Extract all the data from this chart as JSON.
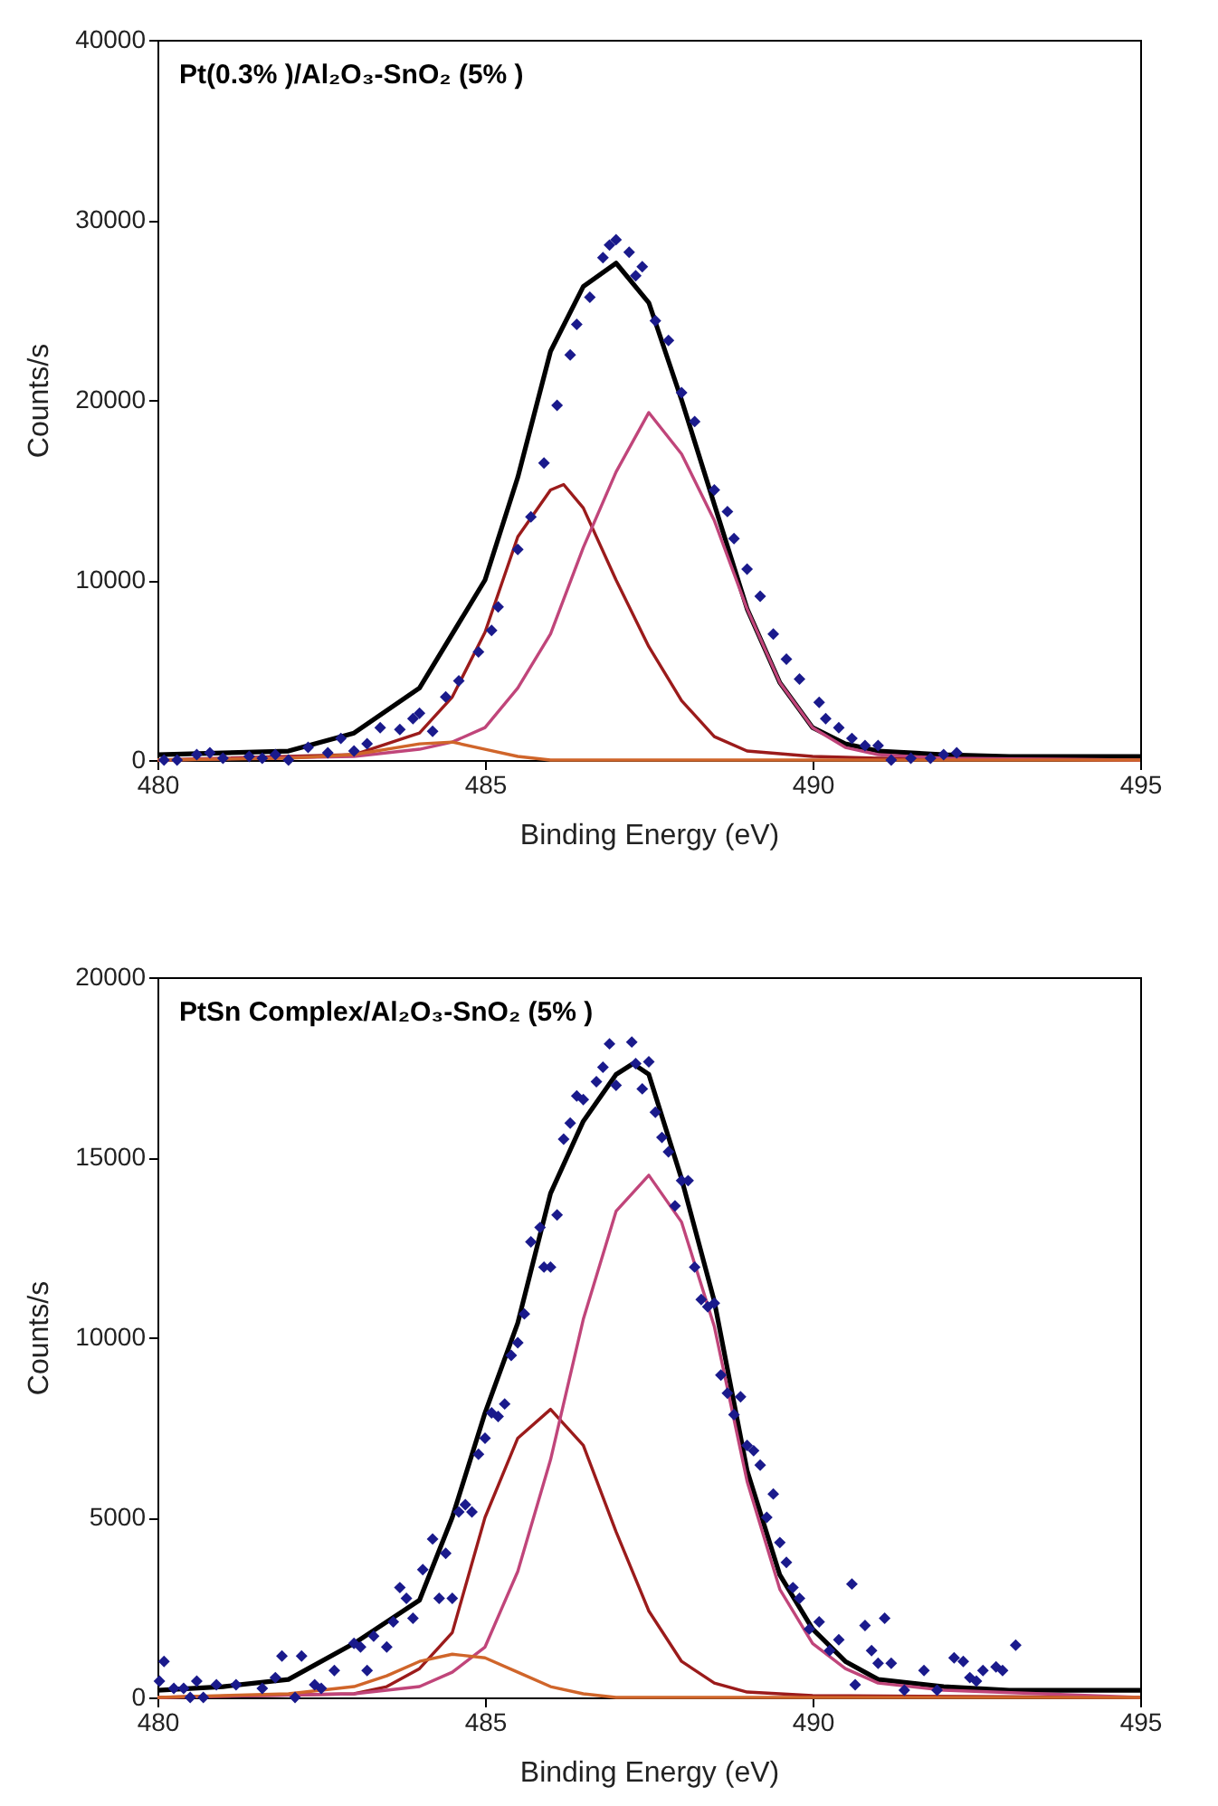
{
  "chart_data": [
    {
      "type": "line",
      "title": "Pt(0.3% )/Al₂O₃-SnO₂ (5% )",
      "xlabel": "Binding Energy (eV)",
      "ylabel": "Counts/s",
      "xlim": [
        480,
        495
      ],
      "xticks": [
        480,
        485,
        490,
        495
      ],
      "ylim": [
        0,
        40000
      ],
      "yticks": [
        0,
        10000,
        20000,
        30000,
        40000
      ],
      "series": [
        {
          "type": "scatter",
          "marker": "diamond",
          "color": "#1a1a8c",
          "x": [
            480.1,
            480.3,
            480.6,
            480.8,
            481.0,
            481.4,
            481.6,
            481.8,
            482.0,
            482.3,
            482.6,
            482.8,
            483.0,
            483.2,
            483.4,
            483.7,
            483.9,
            484.0,
            484.2,
            484.4,
            484.6,
            484.9,
            485.1,
            485.2,
            485.5,
            485.7,
            485.9,
            486.1,
            486.3,
            486.4,
            486.6,
            486.8,
            486.9,
            487.0,
            487.2,
            487.3,
            487.4,
            487.6,
            487.8,
            488.0,
            488.2,
            488.5,
            488.7,
            488.8,
            489.0,
            489.2,
            489.4,
            489.6,
            489.8,
            490.1,
            490.2,
            490.4,
            490.6,
            490.8,
            491.0,
            491.2,
            491.5,
            491.8,
            492.0,
            492.2
          ],
          "values": [
            0,
            0,
            300,
            400,
            100,
            200,
            100,
            300,
            0,
            700,
            400,
            1200,
            500,
            900,
            1800,
            1700,
            2300,
            2600,
            1600,
            3500,
            4400,
            6000,
            7200,
            8500,
            11700,
            13500,
            16500,
            19700,
            22500,
            24200,
            25700,
            27900,
            28600,
            28900,
            28200,
            26900,
            27400,
            24400,
            23300,
            20400,
            18800,
            15000,
            13800,
            12300,
            10600,
            9100,
            7000,
            5600,
            4500,
            3200,
            2300,
            1800,
            1200,
            800,
            800,
            0,
            100,
            100,
            300,
            400
          ]
        },
        {
          "color": "#000000",
          "x": [
            480,
            481,
            482,
            483,
            484,
            485,
            485.5,
            486,
            486.5,
            487,
            487.5,
            488,
            488.5,
            489,
            489.5,
            490,
            490.5,
            491,
            492,
            493,
            495
          ],
          "values": [
            300,
            400,
            500,
            1500,
            4000,
            10000,
            15700,
            22700,
            26300,
            27600,
            25400,
            20000,
            14200,
            8400,
            4300,
            1800,
            900,
            500,
            300,
            200,
            200
          ]
        },
        {
          "color": "#9b1b1b",
          "x": [
            480,
            483,
            484,
            484.5,
            485,
            485.5,
            486,
            486.2,
            486.5,
            487,
            487.5,
            488,
            488.5,
            489,
            490,
            491,
            495
          ],
          "values": [
            0,
            300,
            1500,
            3500,
            7100,
            12400,
            15000,
            15300,
            14000,
            10000,
            6300,
            3300,
            1300,
            500,
            200,
            100,
            0
          ]
        },
        {
          "color": "#c0457a",
          "x": [
            480,
            483,
            484,
            484.5,
            485,
            485.5,
            486,
            486.5,
            487,
            487.5,
            488,
            488.5,
            489,
            489.5,
            490,
            490.5,
            491,
            492,
            495
          ],
          "values": [
            0,
            200,
            600,
            1000,
            1800,
            4000,
            7000,
            11800,
            16000,
            19300,
            17000,
            13300,
            8400,
            4300,
            1800,
            700,
            300,
            100,
            0
          ]
        },
        {
          "color": "#d0652a",
          "x": [
            480,
            482,
            483,
            484,
            484.5,
            485,
            485.5,
            486,
            487,
            495
          ],
          "values": [
            0,
            100,
            300,
            900,
            1000,
            600,
            200,
            0,
            0,
            0
          ]
        }
      ]
    },
    {
      "type": "line",
      "title": "PtSn Complex/Al₂O₃-SnO₂ (5% )",
      "xlabel": "Binding Energy (eV)",
      "ylabel": "Counts/s",
      "xlim": [
        480,
        495
      ],
      "xticks": [
        480,
        485,
        490,
        495
      ],
      "ylim": [
        0,
        20000
      ],
      "yticks": [
        0,
        5000,
        10000,
        15000,
        20000
      ],
      "series": [
        {
          "type": "scatter",
          "marker": "diamond",
          "color": "#1a1a8c",
          "x": [
            480.03,
            480.1,
            480.25,
            480.4,
            480.5,
            480.6,
            480.7,
            480.9,
            481.2,
            481.6,
            481.8,
            481.9,
            482.1,
            482.2,
            482.4,
            482.5,
            482.7,
            483.0,
            483.1,
            483.2,
            483.3,
            483.5,
            483.6,
            483.7,
            483.8,
            483.9,
            484.05,
            484.2,
            484.3,
            484.4,
            484.5,
            484.6,
            484.7,
            484.8,
            484.9,
            485.0,
            485.1,
            485.2,
            485.3,
            485.4,
            485.5,
            485.6,
            485.7,
            485.84,
            485.9,
            486.0,
            486.1,
            486.2,
            486.3,
            486.4,
            486.5,
            486.7,
            486.8,
            486.9,
            487.0,
            487.24,
            487.3,
            487.4,
            487.5,
            487.6,
            487.7,
            487.8,
            487.9,
            488.0,
            488.1,
            488.2,
            488.3,
            488.4,
            488.5,
            488.6,
            488.7,
            488.8,
            488.9,
            489.0,
            489.1,
            489.2,
            489.3,
            489.4,
            489.5,
            489.6,
            489.7,
            489.8,
            489.95,
            490.1,
            490.26,
            490.4,
            490.6,
            490.65,
            490.8,
            490.9,
            491.0,
            491.1,
            491.2,
            491.4,
            491.7,
            491.9,
            492.16,
            492.3,
            492.4,
            492.5,
            492.6,
            492.8,
            492.9,
            493.1
          ],
          "values": [
            450,
            1000,
            250,
            250,
            0,
            450,
            0,
            350,
            350,
            250,
            550,
            1150,
            0,
            1150,
            350,
            250,
            750,
            1500,
            1400,
            750,
            1700,
            1400,
            2100,
            3050,
            2750,
            2200,
            3550,
            4400,
            2750,
            4000,
            2750,
            5150,
            5350,
            5150,
            6750,
            7200,
            7900,
            7800,
            8150,
            9500,
            9850,
            10650,
            12650,
            13050,
            11950,
            11950,
            13400,
            15500,
            15950,
            16700,
            16600,
            17100,
            17500,
            18150,
            17000,
            18200,
            17600,
            16900,
            17650,
            16250,
            15550,
            15150,
            13650,
            14350,
            14350,
            11950,
            11050,
            10850,
            10950,
            8950,
            8450,
            7850,
            8350,
            7000,
            6850,
            6450,
            5000,
            5650,
            4300,
            3750,
            3050,
            2750,
            1900,
            2100,
            1300,
            1600,
            3150,
            350,
            2000,
            1300,
            950,
            2200,
            950,
            200,
            750,
            200,
            1100,
            1000,
            550,
            450,
            750,
            850,
            750,
            1450
          ]
        },
        {
          "color": "#000000",
          "x": [
            480,
            481,
            482,
            483,
            484,
            484.5,
            485,
            485.5,
            486,
            486.5,
            487,
            487.26,
            487.5,
            488,
            488.5,
            489,
            489.5,
            490,
            490.5,
            491,
            492,
            493,
            495
          ],
          "values": [
            200,
            300,
            500,
            1500,
            2700,
            5000,
            7900,
            10400,
            14000,
            16000,
            17300,
            17600,
            17300,
            14400,
            11000,
            6300,
            3400,
            1900,
            1000,
            500,
            300,
            200,
            200
          ]
        },
        {
          "color": "#9b1b1b",
          "x": [
            480,
            483,
            483.5,
            484,
            484.5,
            485,
            485.5,
            486,
            486.5,
            487,
            487.5,
            488,
            488.5,
            489,
            490,
            495
          ],
          "values": [
            0,
            100,
            300,
            800,
            1800,
            5000,
            7200,
            8000,
            7000,
            4600,
            2400,
            1000,
            400,
            150,
            50,
            0
          ]
        },
        {
          "color": "#c0457a",
          "x": [
            480,
            483,
            484,
            484.5,
            485,
            485.5,
            486,
            486.5,
            487,
            487.5,
            488,
            488.5,
            489,
            489.5,
            490,
            490.5,
            491,
            492,
            495
          ],
          "values": [
            0,
            100,
            300,
            700,
            1400,
            3500,
            6600,
            10500,
            13500,
            14500,
            13200,
            10300,
            6000,
            3000,
            1500,
            800,
            400,
            200,
            0
          ]
        },
        {
          "color": "#d0652a",
          "x": [
            480,
            482,
            483,
            483.5,
            484,
            484.5,
            485,
            485.5,
            486,
            486.5,
            487,
            495
          ],
          "values": [
            0,
            100,
            300,
            600,
            1000,
            1200,
            1100,
            700,
            300,
            100,
            0,
            0
          ]
        }
      ]
    }
  ]
}
